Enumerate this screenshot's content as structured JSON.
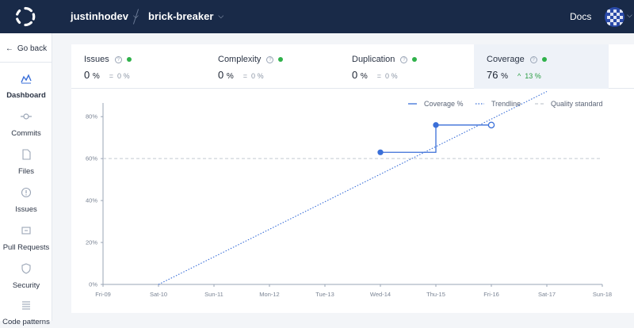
{
  "header": {
    "org": "justinhodev",
    "repo": "brick-breaker",
    "docs_label": "Docs"
  },
  "sidebar": {
    "go_back": "Go back",
    "items": [
      {
        "label": "Dashboard",
        "icon": "dashboard-icon",
        "active": true
      },
      {
        "label": "Commits",
        "icon": "commit-icon"
      },
      {
        "label": "Files",
        "icon": "file-icon"
      },
      {
        "label": "Issues",
        "icon": "issue-icon"
      },
      {
        "label": "Pull Requests",
        "icon": "pull-request-icon"
      },
      {
        "label": "Security",
        "icon": "shield-icon"
      },
      {
        "label": "Code patterns",
        "icon": "list-icon"
      }
    ]
  },
  "metrics": [
    {
      "name": "Issues",
      "value": "0",
      "unit": "%",
      "delta_sign": "=",
      "delta": "0",
      "delta_unit": "%"
    },
    {
      "name": "Complexity",
      "value": "0",
      "unit": "%",
      "delta_sign": "=",
      "delta": "0",
      "delta_unit": "%"
    },
    {
      "name": "Duplication",
      "value": "0",
      "unit": "%",
      "delta_sign": "=",
      "delta": "0",
      "delta_unit": "%"
    },
    {
      "name": "Coverage",
      "value": "76",
      "unit": "%",
      "delta_sign": "^",
      "delta": "13",
      "delta_unit": "%"
    }
  ],
  "colors": {
    "topbar": "#192a48",
    "accent": "#3a6fd8",
    "status_ok": "#2fb14a"
  },
  "chart_data": {
    "type": "line",
    "legend": [
      "Coverage %",
      "Trendline",
      "Quality standard"
    ],
    "legend_position": "top-right",
    "x_ticks": [
      "Fri-09",
      "Sat-10",
      "Sun-11",
      "Mon-12",
      "Tue-13",
      "Wed-14",
      "Thu-15",
      "Fri-16",
      "Sat-17",
      "Sun-18"
    ],
    "y_ticks": [
      "0%",
      "20%",
      "40%",
      "60%",
      "80%"
    ],
    "ylim": [
      0,
      85
    ],
    "series": [
      {
        "name": "Coverage %",
        "style": "step",
        "points": [
          {
            "x": "Wed-14",
            "y": 63
          },
          {
            "x": "Thu-15",
            "y": 63
          },
          {
            "x": "Thu-15",
            "y": 76
          },
          {
            "x": "Fri-16",
            "y": 76
          }
        ],
        "markers": [
          {
            "x": "Wed-14",
            "y": 63,
            "hollow": false
          },
          {
            "x": "Thu-15",
            "y": 76,
            "hollow": false
          },
          {
            "x": "Fri-16",
            "y": 76,
            "hollow": true
          }
        ]
      },
      {
        "name": "Trendline",
        "style": "dotted",
        "points": [
          {
            "x": "Sat-10",
            "y": 0
          },
          {
            "x": "Sat-17",
            "y": 92
          }
        ]
      },
      {
        "name": "Quality standard",
        "style": "dashed",
        "value": 60
      }
    ],
    "grid": false
  }
}
